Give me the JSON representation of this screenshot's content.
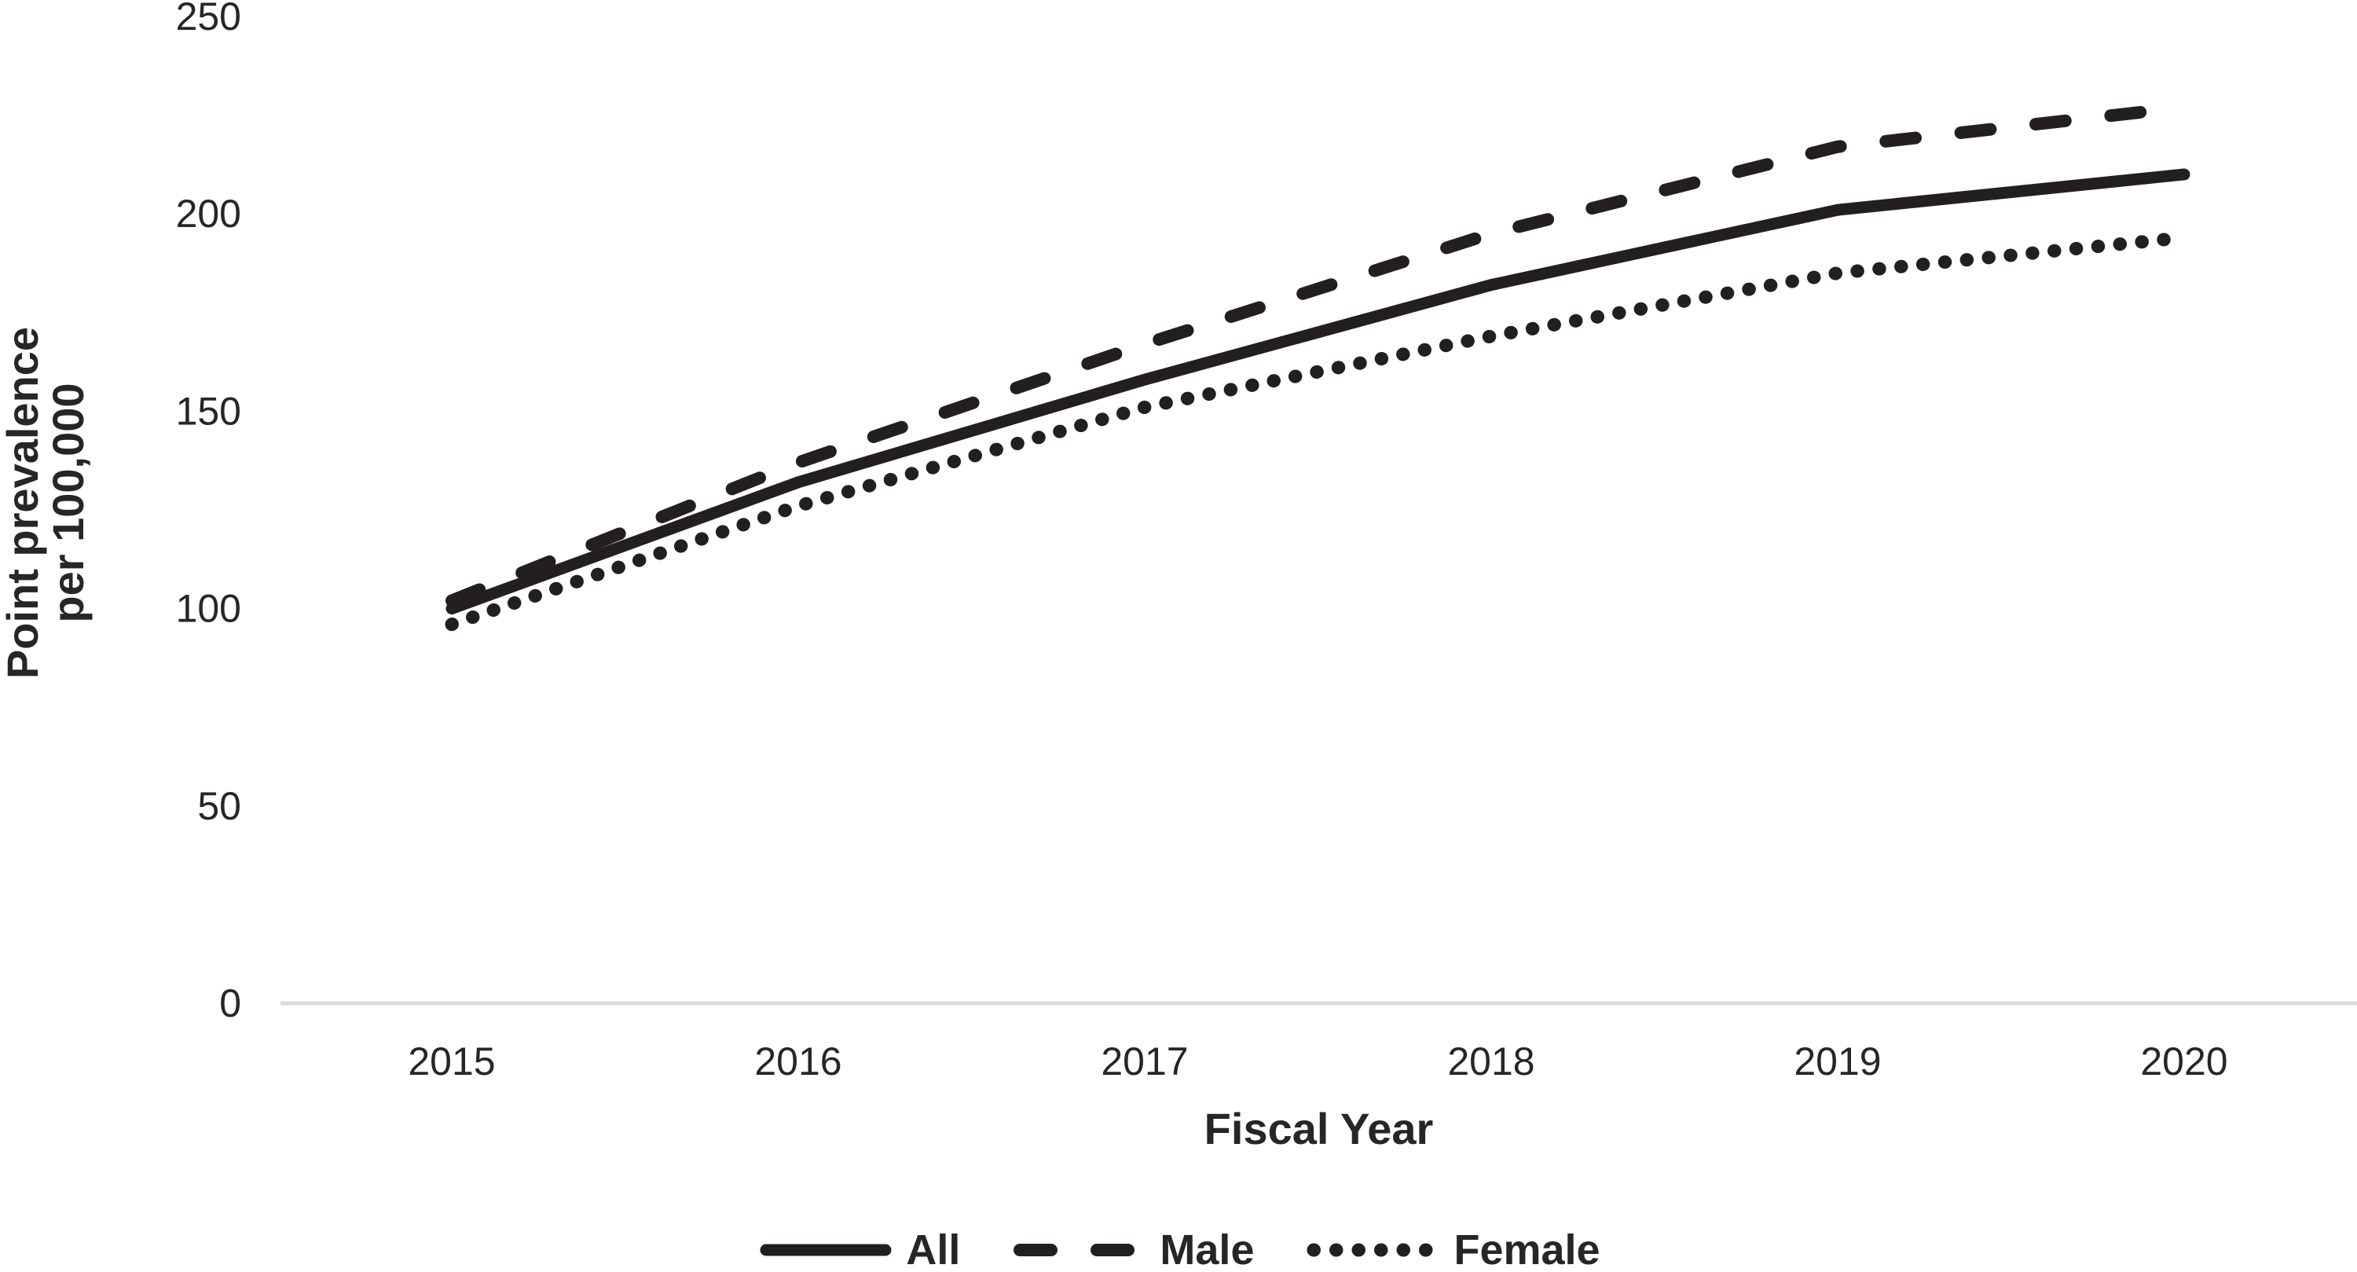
{
  "chart_data": {
    "type": "line",
    "title": "",
    "categories": [
      "2015",
      "2016",
      "2017",
      "2018",
      "2019",
      "2020"
    ],
    "series": [
      {
        "name": "All",
        "style": "solid",
        "values": [
          100,
          132,
          158,
          182,
          201,
          210
        ]
      },
      {
        "name": "Male",
        "style": "dashed",
        "values": [
          102,
          137,
          167,
          195,
          217,
          227
        ]
      },
      {
        "name": "Female",
        "style": "dotted",
        "values": [
          96,
          126,
          151,
          169,
          185,
          194
        ]
      }
    ],
    "xlabel": "Fiscal Year",
    "ylabel_line1": "Point prevalence",
    "ylabel_line2": "per 100,000",
    "y_ticks": [
      0,
      50,
      100,
      150,
      200,
      250
    ],
    "ylim": [
      0,
      250
    ],
    "grid": false,
    "legend_position": "bottom",
    "line_color": "#231f20",
    "axis_line_color": "#d9d9d9",
    "text_color": "#262626"
  }
}
